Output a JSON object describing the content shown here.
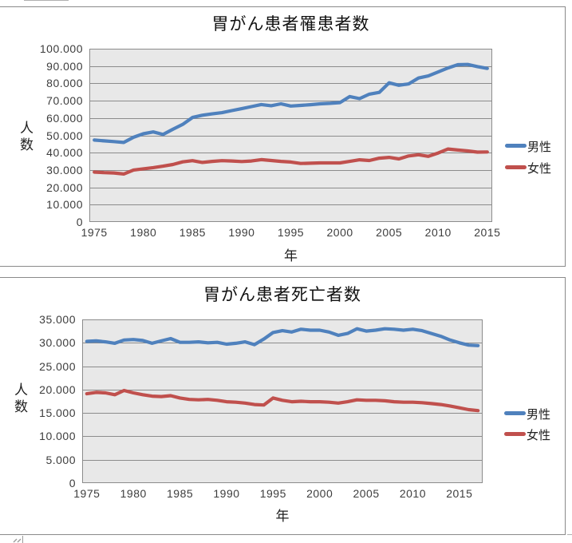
{
  "colors": {
    "male_line": "#4f81bd",
    "female_line": "#c0504d",
    "plot_background": "#e8e8e8",
    "gridline": "#8c8c8c",
    "chart_border": "#8a8a8a",
    "text": "#3d3d3d"
  },
  "chart_data": [
    {
      "type": "line",
      "title": "胃がん患者罹患者数",
      "x_axis_title": "年",
      "y_axis_title": "人数",
      "ylim": [
        0,
        100000
      ],
      "y_tick_step": 10000,
      "grid": true,
      "legend_position": "right",
      "y_tick_labels": [
        "100.000",
        "90.000",
        "80.000",
        "70.000",
        "60.000",
        "50.000",
        "40.000",
        "30.000",
        "20.000",
        "10.000",
        "0"
      ],
      "x_tick_labels": [
        "1975",
        "1980",
        "1985",
        "1990",
        "1995",
        "2000",
        "2005",
        "2010",
        "2015"
      ],
      "years": [
        1975,
        1976,
        1977,
        1978,
        1979,
        1980,
        1981,
        1982,
        1983,
        1984,
        1985,
        1986,
        1987,
        1988,
        1989,
        1990,
        1991,
        1992,
        1993,
        1994,
        1995,
        1996,
        1997,
        1998,
        1999,
        2000,
        2001,
        2002,
        2003,
        2004,
        2005,
        2006,
        2007,
        2008,
        2009,
        2010,
        2011,
        2012,
        2013,
        2014,
        2015
      ],
      "series": [
        {
          "name": "男性",
          "color": "#4f81bd",
          "values": [
            47300,
            46800,
            46400,
            45900,
            48900,
            50900,
            52000,
            50500,
            53500,
            56300,
            60300,
            61600,
            62400,
            63100,
            64300,
            65400,
            66600,
            67800,
            67100,
            68200,
            66900,
            67300,
            67700,
            68200,
            68500,
            68900,
            72400,
            71200,
            73800,
            74800,
            80300,
            78900,
            79700,
            83100,
            84300,
            86600,
            88900,
            90800,
            90900,
            89700,
            88600
          ]
        },
        {
          "name": "女性",
          "color": "#c0504d",
          "values": [
            28800,
            28500,
            28300,
            27700,
            30000,
            30700,
            31400,
            32200,
            33200,
            34700,
            35400,
            34400,
            35000,
            35400,
            35200,
            34900,
            35200,
            36000,
            35500,
            35000,
            34600,
            33800,
            33900,
            34100,
            34100,
            34100,
            35000,
            35900,
            35500,
            36800,
            37300,
            36400,
            38100,
            38800,
            37900,
            39800,
            42100,
            41500,
            41000,
            40300,
            40400
          ]
        }
      ]
    },
    {
      "type": "line",
      "title": "胃がん患者死亡者数",
      "x_axis_title": "年",
      "y_axis_title": "人数",
      "ylim": [
        0,
        35000
      ],
      "y_tick_step": 5000,
      "grid": true,
      "legend_position": "right",
      "y_tick_labels": [
        "35.000",
        "30.000",
        "25.000",
        "20.000",
        "15.000",
        "10.000",
        "5.000",
        "0"
      ],
      "x_tick_labels": [
        "1975",
        "1980",
        "1985",
        "1990",
        "1995",
        "2000",
        "2005",
        "2010",
        "2015"
      ],
      "years": [
        1975,
        1976,
        1977,
        1978,
        1979,
        1980,
        1981,
        1982,
        1983,
        1984,
        1985,
        1986,
        1987,
        1988,
        1989,
        1990,
        1991,
        1992,
        1993,
        1994,
        1995,
        1996,
        1997,
        1998,
        1999,
        2000,
        2001,
        2002,
        2003,
        2004,
        2005,
        2006,
        2007,
        2008,
        2009,
        2010,
        2011,
        2012,
        2013,
        2014,
        2015,
        2016,
        2017
      ],
      "series": [
        {
          "name": "男性",
          "color": "#4f81bd",
          "values": [
            30300,
            30400,
            30200,
            29900,
            30600,
            30700,
            30500,
            29900,
            30400,
            30900,
            30100,
            30100,
            30200,
            30000,
            30100,
            29700,
            29900,
            30200,
            29600,
            30800,
            32200,
            32600,
            32300,
            32900,
            32700,
            32700,
            32300,
            31600,
            32000,
            33000,
            32500,
            32700,
            33000,
            32900,
            32700,
            32900,
            32600,
            32000,
            31400,
            30600,
            30000,
            29500,
            29400
          ]
        },
        {
          "name": "女性",
          "color": "#c0504d",
          "values": [
            19100,
            19400,
            19300,
            18900,
            19800,
            19300,
            18900,
            18600,
            18500,
            18700,
            18200,
            17900,
            17800,
            17900,
            17700,
            17400,
            17300,
            17100,
            16800,
            16700,
            18200,
            17700,
            17400,
            17500,
            17400,
            17400,
            17300,
            17100,
            17400,
            17800,
            17700,
            17700,
            17600,
            17400,
            17300,
            17300,
            17200,
            17000,
            16800,
            16500,
            16100,
            15700,
            15500
          ]
        }
      ]
    }
  ]
}
